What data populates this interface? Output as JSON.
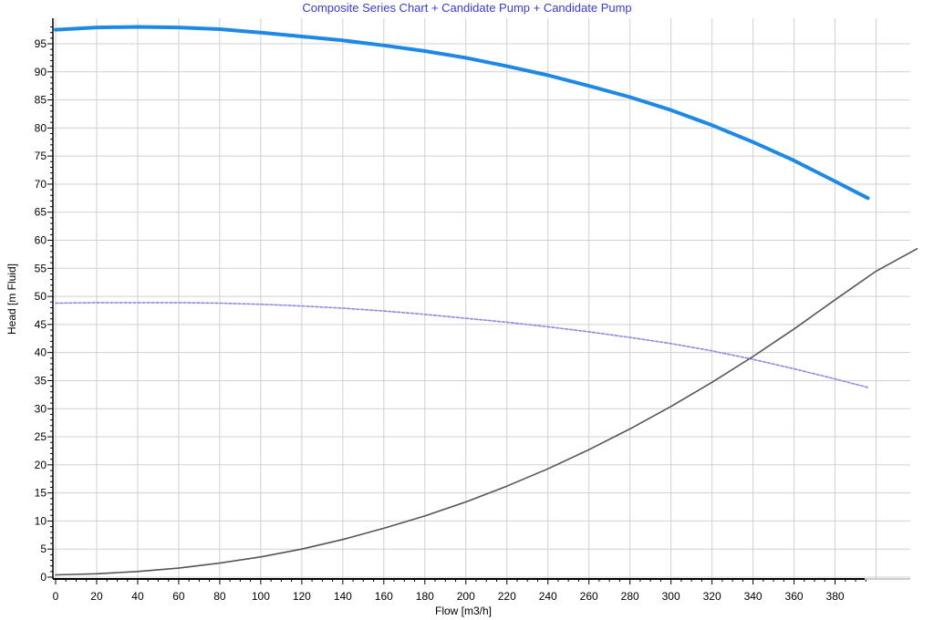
{
  "chart_data": {
    "type": "line",
    "title": "Composite Series Chart + Candidate Pump + Candidate Pump",
    "xlabel": "Flow [m3/h]",
    "ylabel": "Head [m Fluid]",
    "xlim": [
      0,
      420
    ],
    "ylim": [
      0,
      98
    ],
    "x_ticks": [
      0,
      20,
      40,
      60,
      80,
      100,
      120,
      140,
      160,
      180,
      200,
      220,
      240,
      260,
      280,
      300,
      320,
      340,
      360,
      380
    ],
    "y_ticks": [
      0,
      5,
      10,
      15,
      20,
      25,
      30,
      35,
      40,
      45,
      50,
      55,
      60,
      65,
      70,
      75,
      80,
      85,
      90,
      95
    ],
    "grid": true,
    "series": [
      {
        "color": "#1e88e5",
        "style": "solid",
        "x": [
          0,
          20,
          40,
          60,
          80,
          100,
          120,
          140,
          160,
          180,
          200,
          220,
          240,
          260,
          280,
          300,
          320,
          340,
          360,
          380,
          396
        ],
        "values": [
          97.5,
          97.9,
          98.0,
          97.9,
          97.6,
          97.0,
          96.3,
          95.6,
          94.7,
          93.7,
          92.5,
          91.0,
          89.4,
          87.5,
          85.5,
          83.2,
          80.5,
          77.5,
          74.2,
          70.5,
          67.5
        ]
      },
      {
        "color": "#8a8ae0",
        "style": "dashed",
        "x": [
          0,
          20,
          40,
          60,
          80,
          100,
          120,
          140,
          160,
          180,
          200,
          220,
          240,
          260,
          280,
          300,
          320,
          340,
          360,
          380,
          396
        ],
        "values": [
          48.8,
          48.9,
          48.9,
          48.9,
          48.8,
          48.6,
          48.3,
          47.9,
          47.4,
          46.8,
          46.1,
          45.4,
          44.6,
          43.7,
          42.7,
          41.6,
          40.3,
          38.8,
          37.1,
          35.3,
          33.8
        ]
      },
      {
        "color": "#555555",
        "style": "solid",
        "x": [
          0,
          20,
          40,
          60,
          80,
          100,
          120,
          140,
          160,
          180,
          200,
          220,
          240,
          260,
          280,
          300,
          320,
          340,
          360,
          380,
          400,
          420
        ],
        "values": [
          0.4,
          0.6,
          1.0,
          1.6,
          2.5,
          3.6,
          5.0,
          6.7,
          8.7,
          10.9,
          13.4,
          16.2,
          19.3,
          22.7,
          26.4,
          30.4,
          34.7,
          39.3,
          44.2,
          49.4,
          54.5,
          58.5
        ]
      }
    ]
  }
}
